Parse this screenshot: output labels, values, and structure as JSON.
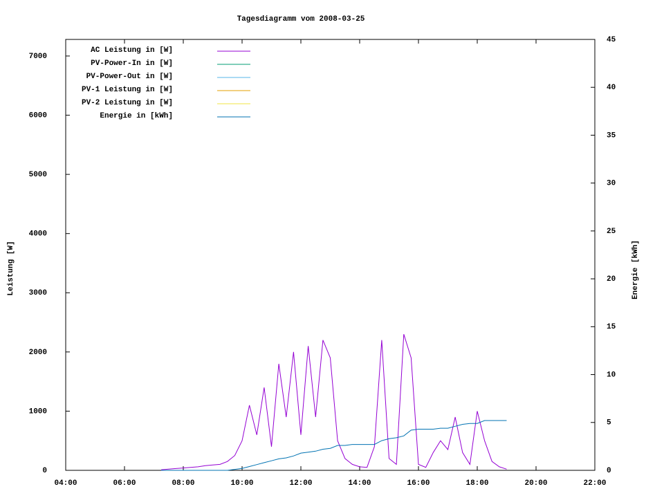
{
  "chart_data": {
    "type": "line",
    "title": "Tagesdiagramm vom 2008-03-25",
    "y_label": "Leistung [W]",
    "y2_label": "Energie [kWh]",
    "x": [
      "07:15",
      "07:30",
      "07:45",
      "08:00",
      "08:15",
      "08:30",
      "08:45",
      "09:00",
      "09:15",
      "09:30",
      "09:45",
      "10:00",
      "10:15",
      "10:30",
      "10:45",
      "11:00",
      "11:15",
      "11:30",
      "11:45",
      "12:00",
      "12:15",
      "12:30",
      "12:45",
      "13:00",
      "13:15",
      "13:30",
      "13:45",
      "14:00",
      "14:15",
      "14:30",
      "14:45",
      "15:00",
      "15:15",
      "15:30",
      "15:45",
      "16:00",
      "16:15",
      "16:30",
      "16:45",
      "17:00",
      "17:15",
      "17:30",
      "17:45",
      "18:00",
      "18:15",
      "18:30",
      "18:45",
      "19:00"
    ],
    "series": [
      {
        "name": "AC Leistung in [W]",
        "color": "#9400d3",
        "values": [
          10,
          20,
          30,
          40,
          50,
          60,
          80,
          90,
          100,
          150,
          250,
          500,
          1100,
          600,
          1400,
          400,
          1800,
          900,
          2000,
          600,
          2100,
          900,
          2200,
          1900,
          500,
          200,
          100,
          60,
          50,
          400,
          2200,
          200,
          100,
          2300,
          1900,
          100,
          50,
          300,
          500,
          350,
          900,
          300,
          100,
          1000,
          500,
          150,
          60,
          20
        ]
      },
      {
        "name": "PV-Power-In in [W]",
        "color": "#009e73",
        "values": [
          null,
          null,
          null,
          null,
          null,
          null,
          null,
          null,
          null,
          null,
          null,
          null,
          null,
          null,
          null,
          null,
          null,
          null,
          null,
          null,
          null,
          null,
          null,
          null,
          null,
          null,
          null,
          null,
          null,
          null,
          null,
          null,
          null,
          null,
          null,
          null,
          null,
          null,
          null,
          null,
          null,
          null,
          null,
          null,
          null,
          null,
          null,
          null
        ]
      },
      {
        "name": "PV-Power-Out in [W]",
        "color": "#56b4e9",
        "values": [
          null,
          null,
          null,
          null,
          null,
          null,
          null,
          null,
          null,
          null,
          null,
          null,
          null,
          null,
          null,
          null,
          null,
          null,
          null,
          null,
          null,
          null,
          null,
          null,
          null,
          null,
          null,
          null,
          null,
          null,
          null,
          null,
          null,
          null,
          null,
          null,
          null,
          null,
          null,
          null,
          null,
          null,
          null,
          null,
          null,
          null,
          null,
          null
        ]
      },
      {
        "name": "PV-1 Leistung in [W]",
        "color": "#e69f00",
        "values": [
          null,
          null,
          null,
          null,
          null,
          null,
          null,
          null,
          null,
          null,
          null,
          null,
          null,
          null,
          null,
          null,
          null,
          null,
          null,
          null,
          null,
          null,
          null,
          null,
          null,
          null,
          null,
          null,
          null,
          null,
          null,
          null,
          null,
          null,
          null,
          null,
          null,
          null,
          null,
          null,
          null,
          null,
          null,
          null,
          null,
          null,
          null,
          null
        ]
      },
      {
        "name": "PV-2 Leistung in [W]",
        "color": "#f0e442",
        "values": [
          null,
          null,
          null,
          null,
          null,
          null,
          null,
          null,
          null,
          null,
          null,
          null,
          null,
          null,
          null,
          null,
          null,
          null,
          null,
          null,
          null,
          null,
          null,
          null,
          null,
          null,
          null,
          null,
          null,
          null,
          null,
          null,
          null,
          null,
          null,
          null,
          null,
          null,
          null,
          null,
          null,
          null,
          null,
          null,
          null,
          null,
          null,
          null
        ]
      },
      {
        "name": "Energie in [kWh]",
        "color": "#0072b2",
        "axis": "y2",
        "values": [
          0,
          0,
          0,
          0,
          0,
          0,
          0,
          0,
          0,
          0,
          0.1,
          0.2,
          0.4,
          0.6,
          0.8,
          1.0,
          1.2,
          1.3,
          1.5,
          1.8,
          1.9,
          2.0,
          2.2,
          2.3,
          2.6,
          2.6,
          2.7,
          2.7,
          2.7,
          2.7,
          3.1,
          3.3,
          3.4,
          3.6,
          4.2,
          4.3,
          4.3,
          4.3,
          4.4,
          4.4,
          4.6,
          4.8,
          4.9,
          4.9,
          5.2,
          5.2,
          5.2,
          5.2
        ]
      }
    ],
    "xlim": [
      "04:00",
      "22:00"
    ],
    "xticks": [
      "04:00",
      "06:00",
      "08:00",
      "10:00",
      "12:00",
      "14:00",
      "16:00",
      "18:00",
      "20:00",
      "22:00"
    ],
    "ylim": [
      0,
      7280
    ],
    "yticks": [
      0,
      1000,
      2000,
      3000,
      4000,
      5000,
      6000,
      7000
    ],
    "y2lim": [
      0,
      45
    ],
    "y2ticks": [
      0,
      5,
      10,
      15,
      20,
      25,
      30,
      35,
      40,
      45
    ],
    "legend": "top-left"
  }
}
